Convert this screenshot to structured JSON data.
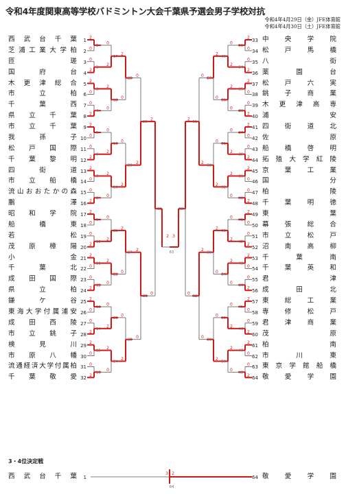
{
  "header": {
    "title": "令和4年度関東高等学校バドミントン大会千葉県予選会男子学校対抗",
    "dates": [
      "令和4年4月29日（金）JFE体育館",
      "令和4年4月30日（土）JFE体育館"
    ]
  },
  "left_teams": [
    {
      "seed": "1",
      "name": "西武台千葉"
    },
    {
      "seed": "2",
      "name": "芝浦工業大学柏"
    },
    {
      "seed": "3",
      "name": "匝瑳"
    },
    {
      "seed": "4",
      "name": "国府台"
    },
    {
      "seed": "5",
      "name": "木更津総合"
    },
    {
      "seed": "6",
      "name": "市立柏"
    },
    {
      "seed": "7",
      "name": "千葉西"
    },
    {
      "seed": "8",
      "name": "県立千葉"
    },
    {
      "seed": "9",
      "name": "市立千葉"
    },
    {
      "seed": "10",
      "name": "我孫子"
    },
    {
      "seed": "11",
      "name": "松戸国際"
    },
    {
      "seed": "12",
      "name": "千葉黎明"
    },
    {
      "seed": "13",
      "name": "四街道"
    },
    {
      "seed": "14",
      "name": "市立船橋"
    },
    {
      "seed": "15",
      "name": "流山おおたかの森"
    },
    {
      "seed": "16",
      "name": "鵬澤"
    },
    {
      "seed": "17",
      "name": "昭和学院"
    },
    {
      "seed": "18",
      "name": "船橋東"
    },
    {
      "seed": "19",
      "name": "若松"
    },
    {
      "seed": "20",
      "name": "茂原樟陽"
    },
    {
      "seed": "21",
      "name": "小金"
    },
    {
      "seed": "22",
      "name": "千葉北"
    },
    {
      "seed": "23",
      "name": "成田国際"
    },
    {
      "seed": "24",
      "name": "県立柏"
    },
    {
      "seed": "25",
      "name": "鎌ケ谷"
    },
    {
      "seed": "26",
      "name": "東海大学付属浦安"
    },
    {
      "seed": "27",
      "name": "成田西陵"
    },
    {
      "seed": "28",
      "name": "市立銚子"
    },
    {
      "seed": "29",
      "name": "検見川"
    },
    {
      "seed": "30",
      "name": "市原八幡"
    },
    {
      "seed": "31",
      "name": "流通経済大学付属柏"
    },
    {
      "seed": "32",
      "name": "千葉敬愛"
    }
  ],
  "right_teams": [
    {
      "seed": "33",
      "name": "中央学院"
    },
    {
      "seed": "34",
      "name": "松戸馬橋"
    },
    {
      "seed": "35",
      "name": "八街"
    },
    {
      "seed": "36",
      "name": "薬園台"
    },
    {
      "seed": "37",
      "name": "松戸六実"
    },
    {
      "seed": "38",
      "name": "銚子商業"
    },
    {
      "seed": "39",
      "name": "木更津高専"
    },
    {
      "seed": "40",
      "name": "浦安"
    },
    {
      "seed": "41",
      "name": "四街道北"
    },
    {
      "seed": "42",
      "name": "佐原"
    },
    {
      "seed": "43",
      "name": "船橋啓明"
    },
    {
      "seed": "44",
      "name": "拓殖大学紅陵"
    },
    {
      "seed": "45",
      "name": "京葉工業"
    },
    {
      "seed": "46",
      "name": "国分"
    },
    {
      "seed": "47",
      "name": "柏陵"
    },
    {
      "seed": "48",
      "name": "千葉明徳"
    },
    {
      "seed": "49",
      "name": "東葉"
    },
    {
      "seed": "50",
      "name": "幕張総合"
    },
    {
      "seed": "51",
      "name": "市立松戸"
    },
    {
      "seed": "52",
      "name": "沼南高柳"
    },
    {
      "seed": "53",
      "name": "千葉南"
    },
    {
      "seed": "54",
      "name": "千葉英和"
    },
    {
      "seed": "55",
      "name": "君津"
    },
    {
      "seed": "56",
      "name": "成田北"
    },
    {
      "seed": "57",
      "name": "東総工業"
    },
    {
      "seed": "58",
      "name": "専修松戸"
    },
    {
      "seed": "59",
      "name": "君津商業"
    },
    {
      "seed": "60",
      "name": "茂原"
    },
    {
      "seed": "61",
      "name": "柏南"
    },
    {
      "seed": "62",
      "name": "市川東"
    },
    {
      "seed": "63",
      "name": "東京学館船橋"
    },
    {
      "seed": "64",
      "name": "敬愛学園"
    }
  ],
  "third_place": {
    "label": "3・4位決定戦",
    "left": {
      "name": "西武台千葉",
      "seed": "1"
    },
    "right": {
      "seed": "64",
      "name": "敬愛学園"
    },
    "match_no": "64",
    "scores": [
      "3",
      "2"
    ]
  },
  "final": {
    "match_no": "63",
    "scores": [
      "2",
      "3"
    ]
  },
  "colors": {
    "winner_line": "#d01818",
    "loser_line": "#555555"
  }
}
